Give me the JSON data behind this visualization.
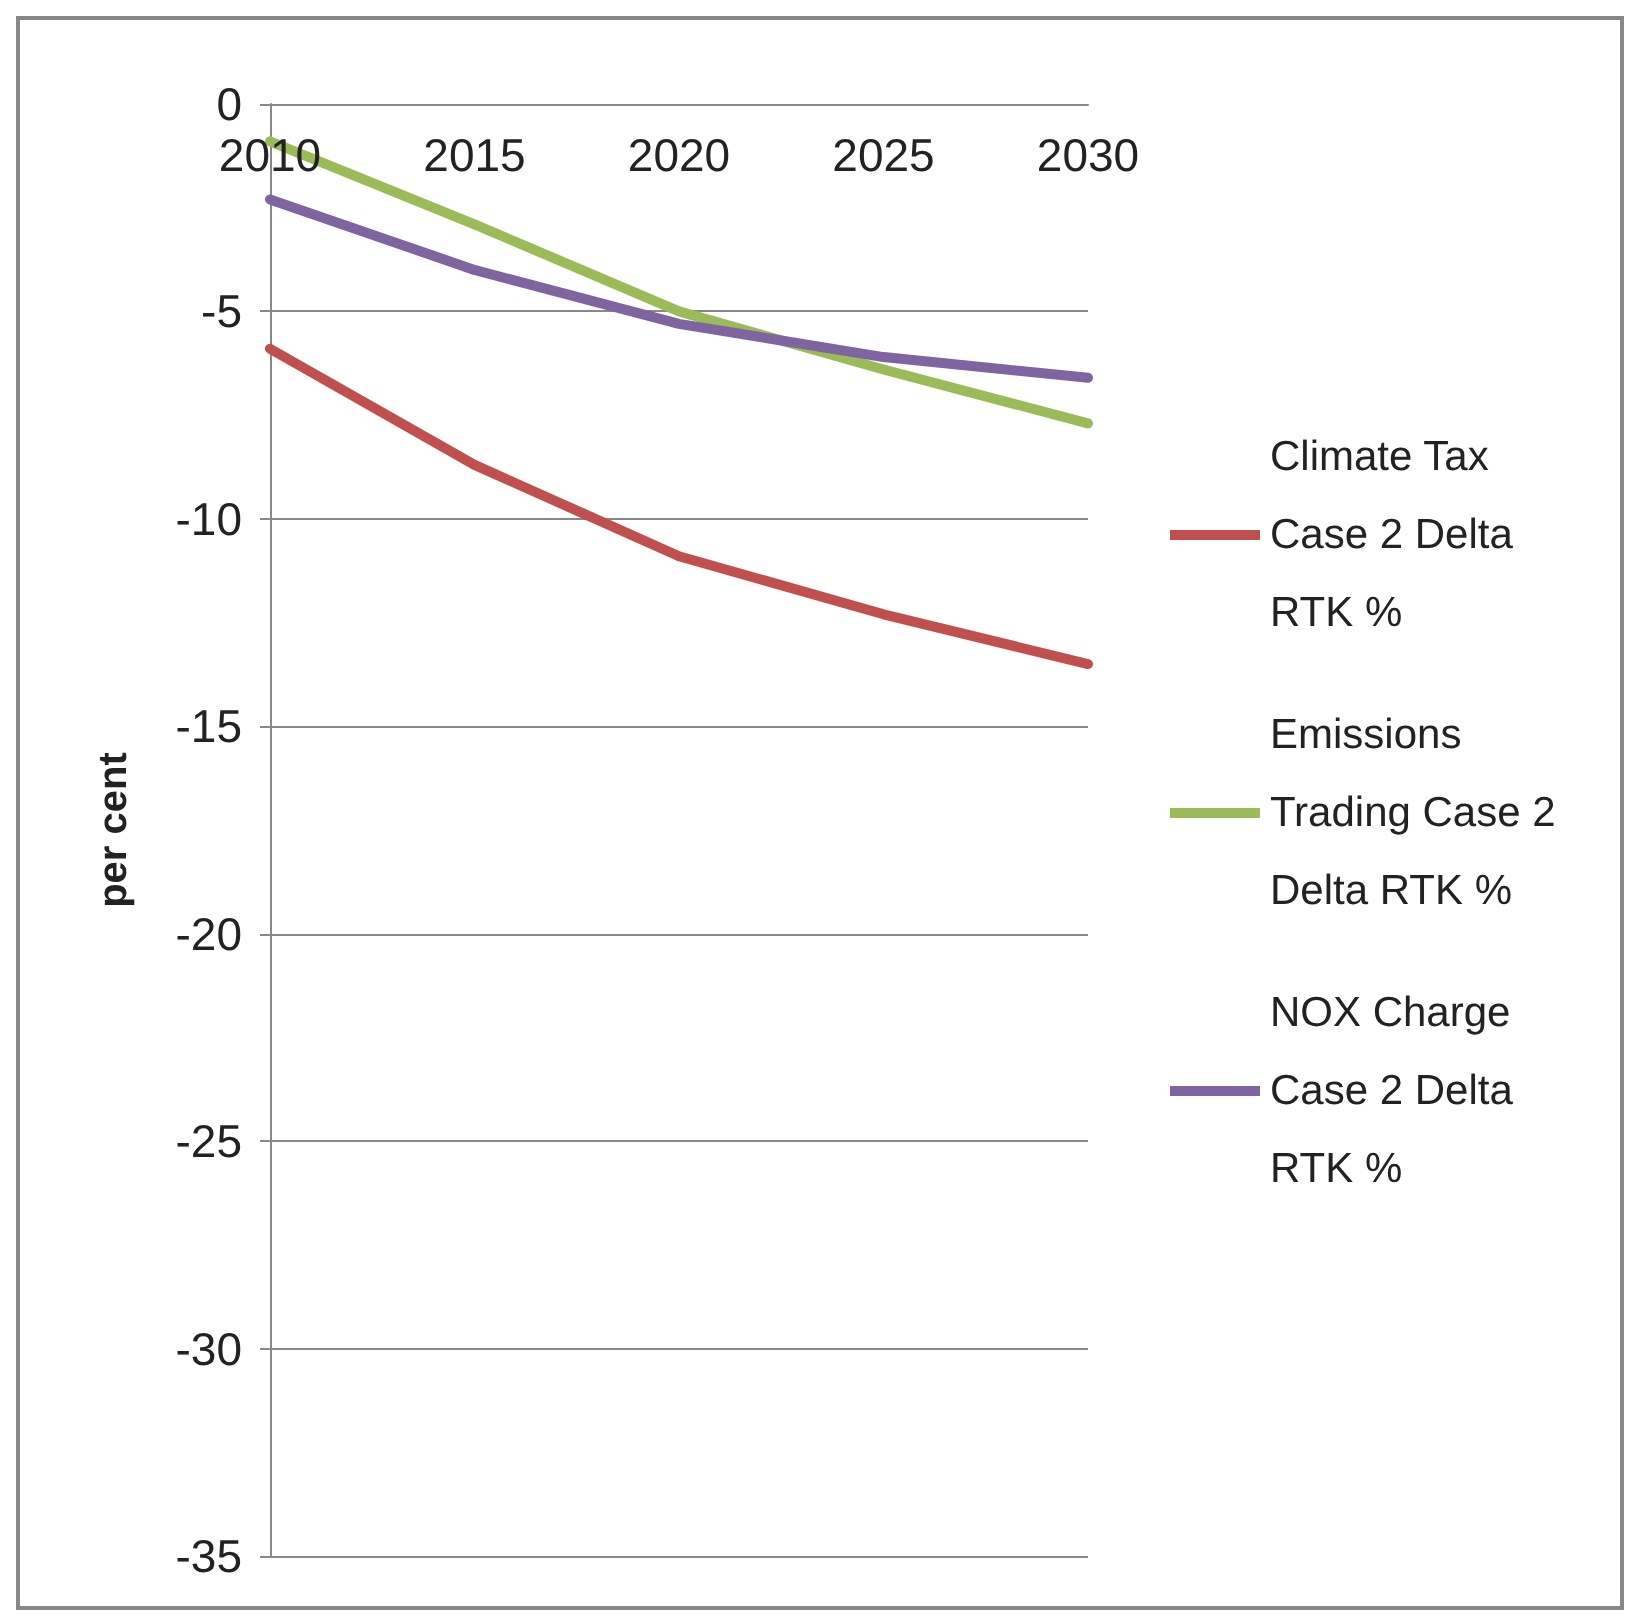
{
  "chart_data": {
    "type": "line",
    "ylabel": "per cent",
    "categories": [
      "2010",
      "2015",
      "2020",
      "2025",
      "2030"
    ],
    "series": [
      {
        "name": "Climate Tax Case 2 Delta RTK %",
        "color": "#c0504d",
        "values": [
          -5.9,
          -8.7,
          -10.9,
          -12.3,
          -13.5
        ]
      },
      {
        "name": "Emissions Trading Case 2 Delta RTK %",
        "color": "#9bbb59",
        "values": [
          -0.9,
          -2.9,
          -5.0,
          -6.4,
          -7.7
        ]
      },
      {
        "name": "NOX Charge Case 2 Delta RTK %",
        "color": "#8064a2",
        "values": [
          -2.3,
          -4.0,
          -5.3,
          -6.1,
          -6.6
        ]
      }
    ],
    "ylim": [
      -35,
      0
    ],
    "yticks": [
      0,
      -5,
      -10,
      -15,
      -20,
      -25,
      -30,
      -35
    ],
    "grid": "y",
    "legend": "right",
    "marker": "none",
    "line_style": "solid"
  }
}
